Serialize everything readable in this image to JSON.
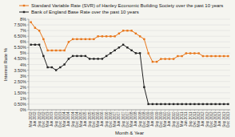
{
  "chart_data": {
    "type": "line",
    "xlabel": "Month & Year",
    "ylabel": "Interest Rate %",
    "categories": [
      "Mar 2002",
      "Jun 2002",
      "Sep 2002",
      "Dec 2002",
      "Mar 2003",
      "Jun 2003",
      "Sep 2003",
      "Dec 2003",
      "Mar 2004",
      "Jun 2004",
      "Sep 2004",
      "Dec 2004",
      "Mar 2005",
      "Jun 2005",
      "Sep 2005",
      "Dec 2005",
      "Mar 2006",
      "Jun 2006",
      "Sep 2006",
      "Dec 2006",
      "Mar 2007",
      "Jun 2007",
      "Sep 2007",
      "Dec 2007",
      "Mar 2008",
      "Jun 2008",
      "Sep 2008",
      "Dec 2008",
      "Mar 2009",
      "Jun 2009",
      "Sep 2009",
      "Dec 2009",
      "Mar 2010",
      "Jun 2010",
      "Sep 2010",
      "Dec 2010",
      "Mar 2011",
      "Jun 2011",
      "Sep 2011",
      "Dec 2011",
      "Mar 2012",
      "Jun 2012",
      "Sep 2012",
      "Dec 2012",
      "Mar 2013",
      "Jun 2013",
      "Sep 2013",
      "Dec 2013"
    ],
    "series": [
      {
        "name": "Standard Variable Rate (SVR) of Hanley Economic Building Society over the past 10 years",
        "color": "#E8761A",
        "marker": "square",
        "values": [
          7.74,
          7.24,
          6.99,
          6.24,
          5.24,
          5.24,
          5.24,
          5.24,
          5.24,
          5.99,
          6.24,
          6.24,
          6.24,
          6.24,
          6.24,
          6.24,
          6.49,
          6.49,
          6.49,
          6.49,
          6.49,
          6.74,
          6.99,
          6.99,
          6.99,
          6.74,
          6.49,
          6.24,
          4.99,
          4.24,
          4.24,
          4.49,
          4.49,
          4.49,
          4.49,
          4.74,
          4.74,
          4.99,
          4.99,
          4.99,
          4.99,
          4.74,
          4.74,
          4.74,
          4.74,
          4.74,
          4.74,
          4.74
        ]
      },
      {
        "name": "Bank of England Base Rate over the past 10 years",
        "color": "#222222",
        "marker": "square",
        "values": [
          5.75,
          5.75,
          5.75,
          4.75,
          3.75,
          3.75,
          3.5,
          3.75,
          4.0,
          4.5,
          4.75,
          4.75,
          4.75,
          4.75,
          4.5,
          4.5,
          4.5,
          4.5,
          4.75,
          5.0,
          5.25,
          5.5,
          5.75,
          5.5,
          5.25,
          5.0,
          5.0,
          2.0,
          0.5,
          0.5,
          0.5,
          0.5,
          0.5,
          0.5,
          0.5,
          0.5,
          0.5,
          0.5,
          0.5,
          0.5,
          0.5,
          0.5,
          0.5,
          0.5,
          0.5,
          0.5,
          0.5,
          0.5
        ]
      }
    ],
    "ylim": [
      0.0,
      8.0
    ],
    "yticks": [
      {
        "value": 0.0,
        "label": "0%"
      },
      {
        "value": 0.5,
        "label": "0.50%"
      },
      {
        "value": 1.0,
        "label": "1%"
      },
      {
        "value": 1.5,
        "label": "1.50%"
      },
      {
        "value": 2.0,
        "label": "2%"
      },
      {
        "value": 2.5,
        "label": "2.50%"
      },
      {
        "value": 3.0,
        "label": "3%"
      },
      {
        "value": 3.5,
        "label": "3.50%"
      },
      {
        "value": 4.0,
        "label": "4%"
      },
      {
        "value": 4.5,
        "label": "4.50%"
      },
      {
        "value": 5.0,
        "label": "5%"
      },
      {
        "value": 5.5,
        "label": "5.50%"
      },
      {
        "value": 6.0,
        "label": "6%"
      },
      {
        "value": 6.5,
        "label": "6.50%"
      },
      {
        "value": 7.0,
        "label": "7%"
      },
      {
        "value": 7.5,
        "label": "7.50%"
      },
      {
        "value": 8.0,
        "label": "8%"
      }
    ],
    "grid": true,
    "legend": "top"
  }
}
